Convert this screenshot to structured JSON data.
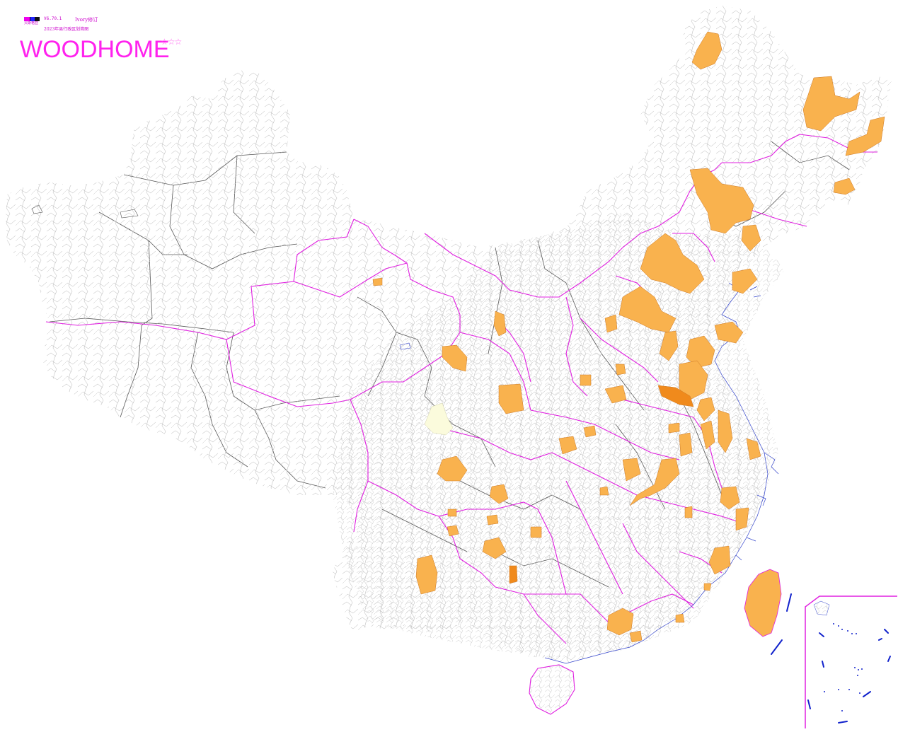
{
  "header": {
    "icon_label": "贝斯格亚",
    "version": "V6.70.1",
    "credit": "Ivory修订",
    "subtitle": "2023年县行政区划简图",
    "brand": "WOODHOME",
    "stars": "☆☆☆"
  },
  "colors": {
    "province_border": "#e020e0",
    "county_border": "#aaaaaa",
    "prefecture_border": "#555555",
    "coast": "#3333cc",
    "highlight": "#f9b24e",
    "highlight_strong": "#f08a1c",
    "pale": "#fbfbdc"
  },
  "map": {
    "highlight_style": "orange-filled counties/prefectures",
    "inset": "南海诸岛 inset (bottom-right)"
  }
}
